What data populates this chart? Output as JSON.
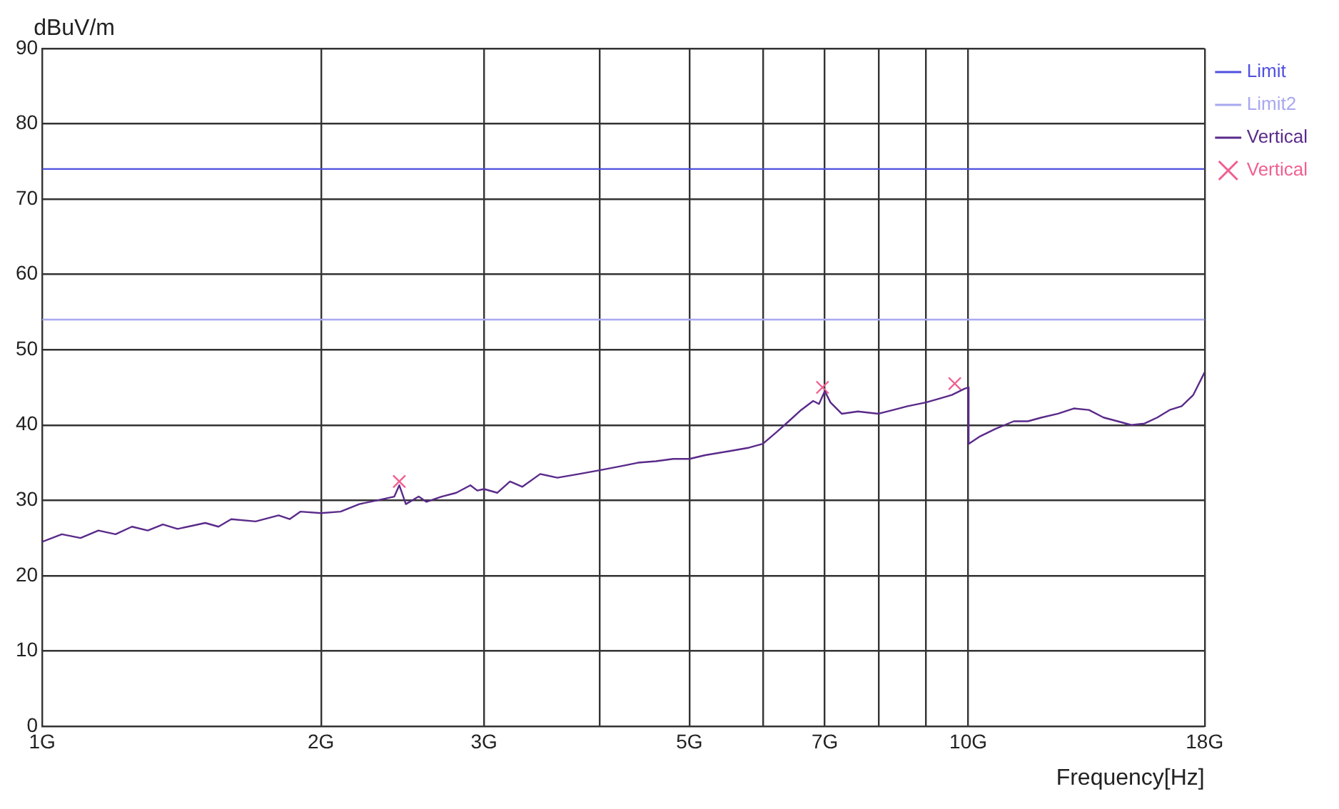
{
  "chart_data": {
    "type": "line",
    "ylabel": "dBuV/m",
    "xlabel": "Frequency[Hz]",
    "log": "x",
    "grid": true,
    "legend": "top right",
    "marker": "none",
    "line_style": "solid",
    "xlim": [
      1,
      18
    ],
    "xticks": [
      {
        "value": 1,
        "label": "1G"
      },
      {
        "value": 2,
        "label": "2G"
      },
      {
        "value": 3,
        "label": "3G"
      },
      {
        "value": 4,
        "label": null
      },
      {
        "value": 5,
        "label": "5G"
      },
      {
        "value": 6,
        "label": null
      },
      {
        "value": 7,
        "label": "7G"
      },
      {
        "value": 8,
        "label": null
      },
      {
        "value": 9,
        "label": null
      },
      {
        "value": 10,
        "label": "10G"
      },
      {
        "value": 18,
        "label": "18G"
      }
    ],
    "ylim": [
      0,
      90
    ],
    "yticks": [
      0,
      10,
      20,
      30,
      40,
      50,
      60,
      70,
      80,
      90
    ],
    "series": [
      {
        "name": "Limit",
        "color": "#5050e0",
        "x": [
          1,
          18
        ],
        "values": [
          74,
          74
        ]
      },
      {
        "name": "Limit2",
        "color": "#a8a8f0",
        "x": [
          1,
          18
        ],
        "values": [
          54,
          54
        ]
      },
      {
        "name": "Vertical",
        "color": "#5a2a8a",
        "x": [
          1,
          1.05,
          1.1,
          1.15,
          1.2,
          1.25,
          1.3,
          1.35,
          1.4,
          1.5,
          1.55,
          1.6,
          1.7,
          1.8,
          1.85,
          1.9,
          2,
          2.1,
          2.2,
          2.3,
          2.4,
          2.43,
          2.47,
          2.55,
          2.6,
          2.7,
          2.8,
          2.9,
          2.95,
          3,
          3.1,
          3.2,
          3.3,
          3.45,
          3.6,
          3.8,
          4,
          4.2,
          4.4,
          4.6,
          4.8,
          5,
          5.2,
          5.5,
          5.8,
          6,
          6.2,
          6.4,
          6.6,
          6.8,
          6.9,
          7,
          7.1,
          7.3,
          7.6,
          8,
          8.3,
          8.6,
          9,
          9.3,
          9.6,
          9.9,
          10,
          10.01,
          10.3,
          10.7,
          11.2,
          11.6,
          12,
          12.5,
          13,
          13.5,
          14,
          14.5,
          15,
          15.5,
          16,
          16.5,
          17,
          17.5,
          18
        ],
        "values": [
          24.5,
          25.5,
          25,
          26,
          25.5,
          26.5,
          26,
          26.8,
          26.2,
          27,
          26.5,
          27.5,
          27.2,
          28,
          27.5,
          28.5,
          28.3,
          28.5,
          29.5,
          30,
          30.5,
          32,
          29.5,
          30.5,
          29.8,
          30.5,
          31,
          32,
          31.3,
          31.5,
          31,
          32.5,
          31.8,
          33.5,
          33,
          33.5,
          34,
          34.5,
          35,
          35.2,
          35.5,
          35.5,
          36,
          36.5,
          37,
          37.5,
          39,
          40.5,
          42,
          43.2,
          42.8,
          44.5,
          43,
          41.5,
          41.8,
          41.5,
          42,
          42.5,
          43,
          43.5,
          44,
          44.8,
          45,
          37.5,
          38.5,
          39.5,
          40.5,
          40.5,
          41,
          41.5,
          42.2,
          42,
          41,
          40.5,
          40,
          40.2,
          41,
          42,
          42.5,
          44,
          47
        ]
      },
      {
        "name": "Vertical",
        "type": "scatter",
        "marker": "cross",
        "color": "#f06090",
        "x": [
          2.43,
          6.96,
          9.67
        ],
        "values": [
          32.5,
          45,
          45.5
        ]
      }
    ]
  }
}
